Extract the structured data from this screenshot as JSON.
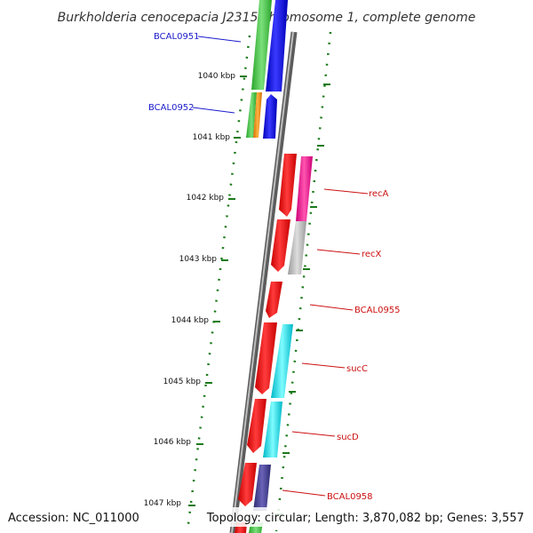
{
  "title": "Burkholderia cenocepacia J2315 chromosome 1, complete genome",
  "accession": "Accession: NC_011000",
  "topology": "Topology: circular; Length: 3,870,082 bp; Genes: 3,557",
  "ruler": {
    "tick_labels": [
      "1040 kbp",
      "1041 kbp",
      "1042 kbp",
      "1043 kbp",
      "1044 kbp",
      "1045 kbp",
      "1046 kbp",
      "1047 kbp"
    ]
  },
  "colors": {
    "backbone": "#8c8c8c",
    "forward_strand_label": "#1a1acc",
    "reverse_strand_label": "#cc1111",
    "tick": "#1a7a1a"
  },
  "genes": [
    {
      "name": "BCAL0951",
      "color": "#0000ff"
    },
    {
      "name": "BCAL0952",
      "color": "#0000ff"
    },
    {
      "name": "recA",
      "color": "#ff0000"
    },
    {
      "name": "recX",
      "color": "#ff0000"
    },
    {
      "name": "BCAL0955",
      "color": "#ff0000"
    },
    {
      "name": "sucC",
      "color": "#ff0000"
    },
    {
      "name": "sucD",
      "color": "#ff0000"
    },
    {
      "name": "BCAL0958",
      "color": "#ff0000"
    }
  ],
  "feature_tracks": [
    "green",
    "orange",
    "magenta",
    "light-gray",
    "cyan",
    "dark-slate-blue"
  ]
}
